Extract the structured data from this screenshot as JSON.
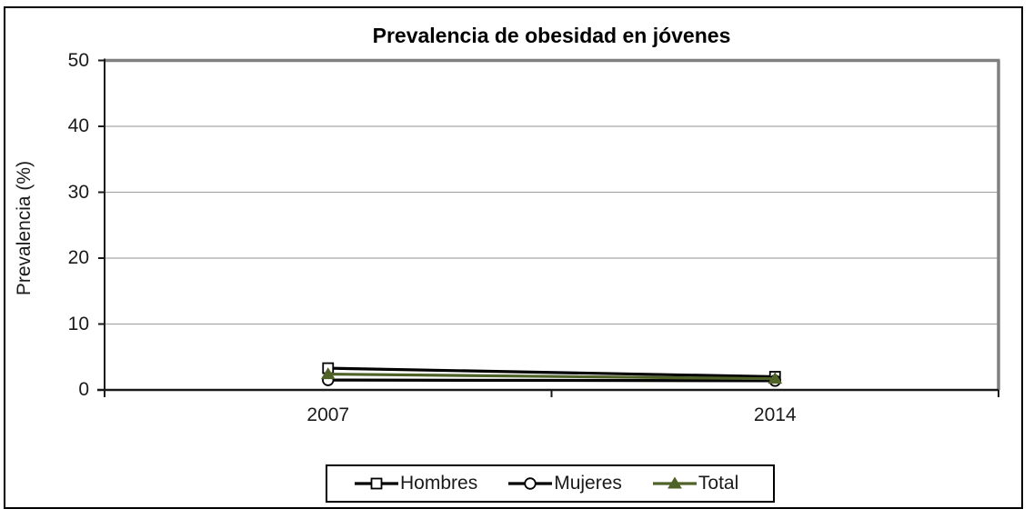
{
  "figure": {
    "background": "#ffffff",
    "outer_border_color": "#000000"
  },
  "chart_data": {
    "type": "line",
    "title": "Prevalencia de obesidad en jóvenes",
    "xlabel": "",
    "ylabel": "Prevalencia (%)",
    "categories": [
      "2007",
      "2014"
    ],
    "series": [
      {
        "name": "Hombres",
        "values": [
          3.3,
          2.0
        ],
        "color": "#000000",
        "marker": "square",
        "marker_fill": "#ffffff"
      },
      {
        "name": "Mujeres",
        "values": [
          1.5,
          1.4
        ],
        "color": "#000000",
        "marker": "circle",
        "marker_fill": "#ffffff"
      },
      {
        "name": "Total",
        "values": [
          2.4,
          1.7
        ],
        "color": "#4F6228",
        "marker": "triangle",
        "marker_fill": "#4F6228"
      }
    ],
    "ylim": [
      0,
      50
    ],
    "yticks": [
      0,
      10,
      20,
      30,
      40,
      50
    ],
    "grid": true,
    "gridline_color": "#A6A6A6",
    "plot_border_color": "#808080",
    "axis_color": "#1a1a1a",
    "legend_position": "bottom"
  }
}
